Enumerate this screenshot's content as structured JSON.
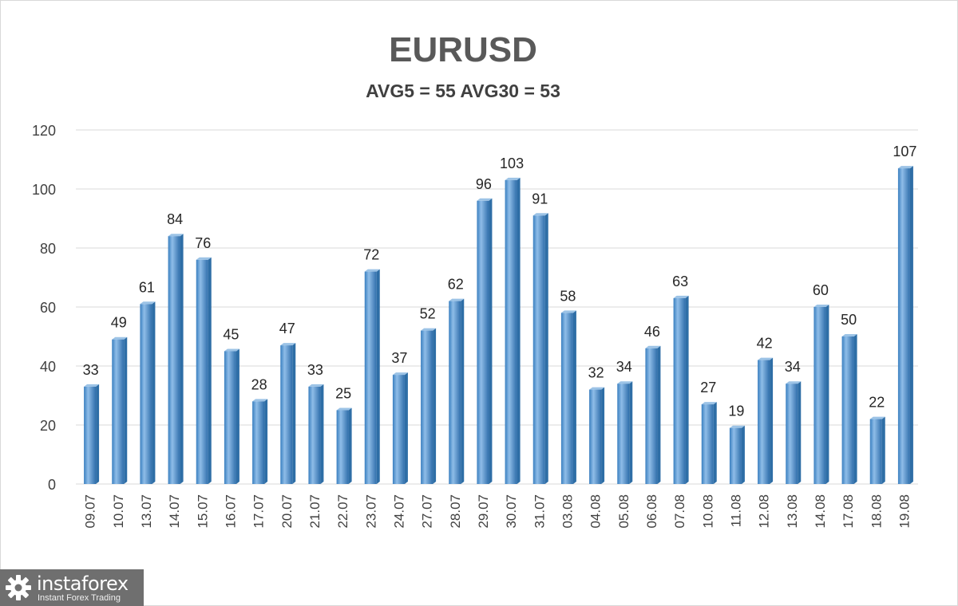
{
  "chart_data": {
    "type": "bar",
    "title": "EURUSD",
    "subtitle": "AVG5 = 55 AVG30 = 53",
    "categories": [
      "09.07",
      "10.07",
      "13.07",
      "14.07",
      "15.07",
      "16.07",
      "17.07",
      "20.07",
      "21.07",
      "22.07",
      "23.07",
      "24.07",
      "27.07",
      "28.07",
      "29.07",
      "30.07",
      "31.07",
      "03.08",
      "04.08",
      "05.08",
      "06.08",
      "07.08",
      "10.08",
      "11.08",
      "12.08",
      "13.08",
      "14.08",
      "17.08",
      "18.08",
      "19.08"
    ],
    "values": [
      33,
      49,
      61,
      84,
      76,
      45,
      28,
      47,
      33,
      25,
      72,
      37,
      52,
      62,
      96,
      103,
      91,
      58,
      32,
      34,
      46,
      63,
      27,
      19,
      42,
      34,
      60,
      50,
      22,
      107
    ],
    "ylim": [
      0,
      120
    ],
    "yticks": [
      0,
      20,
      40,
      60,
      80,
      100,
      120
    ],
    "grid": true,
    "legend": "none",
    "bar_color": "#5b9bd5",
    "bar_highlight": "#9cc3e6",
    "bar_shadow": "#2e6ea6"
  },
  "watermark": {
    "name": "instaforex",
    "tagline": "Instant Forex Trading",
    "gear_icon": "gear-icon"
  }
}
